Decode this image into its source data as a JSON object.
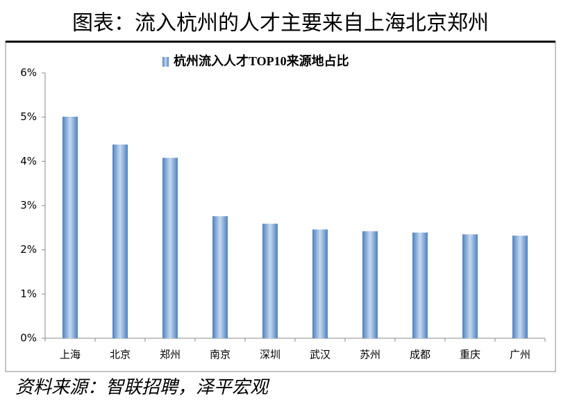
{
  "chart_data": {
    "type": "bar",
    "title": "图表：流入杭州的人才主要来自上海北京郑州",
    "source": "资料来源：智联招聘，泽平宏观",
    "categories": [
      "上海",
      "北京",
      "郑州",
      "南京",
      "深圳",
      "武汉",
      "苏州",
      "成都",
      "重庆",
      "广州"
    ],
    "series": [
      {
        "name": "杭州流入人才TOP10来源地占比",
        "color": "#4f81bd",
        "values": [
          5.01,
          4.38,
          4.08,
          2.76,
          2.59,
          2.46,
          2.42,
          2.39,
          2.35,
          2.32
        ]
      }
    ],
    "ylim": [
      0,
      6
    ],
    "yticks": [
      {
        "value": 0,
        "label": "0%"
      },
      {
        "value": 1,
        "label": "1%"
      },
      {
        "value": 2,
        "label": "2%"
      },
      {
        "value": 3,
        "label": "3%"
      },
      {
        "value": 4,
        "label": "4%"
      },
      {
        "value": 5,
        "label": "5%"
      },
      {
        "value": 6,
        "label": "6%"
      }
    ],
    "grid": false
  }
}
